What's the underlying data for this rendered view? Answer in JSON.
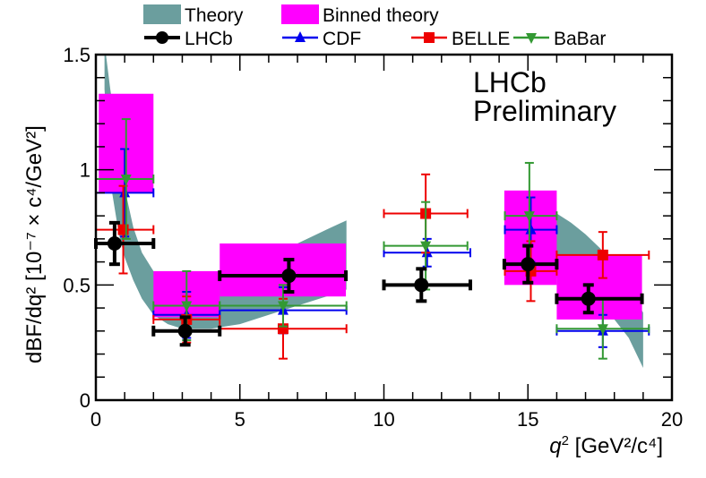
{
  "chart_data": {
    "type": "scatter",
    "xlabel_main": "q",
    "xlabel_sup": "2",
    "xlabel_units": "[GeV²/c⁴]",
    "ylabel": "dBF/dq² [10⁻⁷ × c⁴/GeV²]",
    "xlim": [
      0,
      20
    ],
    "ylim": [
      0,
      1.5
    ],
    "x_ticks": [
      0,
      5,
      10,
      15,
      20
    ],
    "x_tick_labels": [
      "0",
      "5",
      "10",
      "15",
      "20"
    ],
    "y_ticks": [
      0,
      0.5,
      1,
      1.5
    ],
    "y_tick_labels": [
      "0",
      "0.5",
      "1",
      "1.5"
    ],
    "annotation": [
      "LHCb",
      "Preliminary"
    ],
    "colors": {
      "theory": "#6b9e9e",
      "binned_theory": "#ff00ff",
      "lhcb": "#000000",
      "cdf": "#0000ee",
      "belle": "#ee0000",
      "babar": "#339933"
    },
    "legend": [
      {
        "key": "theory",
        "label": "Theory",
        "style": "band"
      },
      {
        "key": "binned_theory",
        "label": "Binned theory",
        "style": "box"
      },
      {
        "key": "lhcb",
        "label": "LHCb",
        "style": "circle"
      },
      {
        "key": "cdf",
        "label": "CDF",
        "style": "triangle-up"
      },
      {
        "key": "belle",
        "label": "BELLE",
        "style": "square"
      },
      {
        "key": "babar",
        "label": "BaBar",
        "style": "triangle-down"
      }
    ],
    "theory_band": {
      "x": [
        0.3,
        0.5,
        0.8,
        1.0,
        1.3,
        1.6,
        2.0,
        2.5,
        3.0,
        4.0,
        5.0,
        6.0,
        7.0,
        8.0,
        8.7
      ],
      "lower": [
        1.35,
        0.95,
        0.72,
        0.62,
        0.52,
        0.44,
        0.37,
        0.33,
        0.31,
        0.31,
        0.33,
        0.37,
        0.41,
        0.45,
        0.48
      ],
      "upper": [
        1.55,
        1.35,
        1.1,
        0.92,
        0.75,
        0.64,
        0.56,
        0.54,
        0.53,
        0.55,
        0.58,
        0.63,
        0.68,
        0.74,
        0.78
      ]
    },
    "theory_band_high": {
      "x": [
        14.2,
        15.0,
        15.5,
        16.0,
        16.5,
        17.0,
        17.5,
        18.0,
        18.5,
        19.0
      ],
      "lower": [
        0.62,
        0.6,
        0.57,
        0.53,
        0.49,
        0.45,
        0.41,
        0.35,
        0.27,
        0.14
      ],
      "upper": [
        0.88,
        0.86,
        0.84,
        0.81,
        0.77,
        0.72,
        0.66,
        0.58,
        0.49,
        0.38
      ]
    },
    "binned_theory": [
      {
        "x_low": 0.1,
        "x_high": 2.0,
        "y_low": 0.9,
        "y_high": 1.33
      },
      {
        "x_low": 2.0,
        "x_high": 4.3,
        "y_low": 0.36,
        "y_high": 0.56
      },
      {
        "x_low": 4.3,
        "x_high": 8.68,
        "y_low": 0.45,
        "y_high": 0.68
      },
      {
        "x_low": 14.18,
        "x_high": 16.0,
        "y_low": 0.5,
        "y_high": 0.91
      },
      {
        "x_low": 16.0,
        "x_high": 18.96,
        "y_low": 0.35,
        "y_high": 0.63
      }
    ],
    "series": [
      {
        "key": "lhcb",
        "name": "LHCb",
        "points": [
          {
            "x": 0.65,
            "y": 0.68,
            "xerr_low": 0.65,
            "xerr_high": 1.35,
            "yerr_low": 0.09,
            "yerr_high": 0.09
          },
          {
            "x": 3.1,
            "y": 0.3,
            "xerr_low": 1.1,
            "xerr_high": 1.2,
            "yerr_low": 0.06,
            "yerr_high": 0.06
          },
          {
            "x": 6.7,
            "y": 0.54,
            "xerr_low": 2.4,
            "xerr_high": 1.98,
            "yerr_low": 0.07,
            "yerr_high": 0.07
          },
          {
            "x": 11.3,
            "y": 0.5,
            "xerr_low": 1.3,
            "xerr_high": 1.7,
            "yerr_low": 0.07,
            "yerr_high": 0.07
          },
          {
            "x": 15.0,
            "y": 0.59,
            "xerr_low": 0.82,
            "xerr_high": 1.0,
            "yerr_low": 0.08,
            "yerr_high": 0.08
          },
          {
            "x": 17.1,
            "y": 0.44,
            "xerr_low": 1.1,
            "xerr_high": 1.86,
            "yerr_low": 0.06,
            "yerr_high": 0.06
          }
        ]
      },
      {
        "key": "cdf",
        "name": "CDF",
        "points": [
          {
            "x": 1.0,
            "y": 0.9,
            "xerr_low": 1.0,
            "xerr_high": 1.0,
            "yerr_low": 0.19,
            "yerr_high": 0.19
          },
          {
            "x": 3.15,
            "y": 0.37,
            "xerr_low": 1.15,
            "xerr_high": 1.15,
            "yerr_low": 0.1,
            "yerr_high": 0.1
          },
          {
            "x": 6.5,
            "y": 0.39,
            "xerr_low": 2.2,
            "xerr_high": 2.2,
            "yerr_low": 0.1,
            "yerr_high": 0.1
          },
          {
            "x": 11.5,
            "y": 0.64,
            "xerr_low": 1.5,
            "xerr_high": 1.5,
            "yerr_low": 0.06,
            "yerr_high": 0.06
          },
          {
            "x": 15.1,
            "y": 0.74,
            "xerr_low": 0.9,
            "xerr_high": 0.9,
            "yerr_low": 0.14,
            "yerr_high": 0.14
          },
          {
            "x": 17.6,
            "y": 0.3,
            "xerr_low": 1.6,
            "xerr_high": 1.6,
            "yerr_low": 0.07,
            "yerr_high": 0.07
          }
        ]
      },
      {
        "key": "belle",
        "name": "BELLE",
        "points": [
          {
            "x": 0.95,
            "y": 0.74,
            "xerr_low": 0.95,
            "xerr_high": 1.05,
            "yerr_low": 0.19,
            "yerr_high": 0.19
          },
          {
            "x": 3.15,
            "y": 0.35,
            "xerr_low": 1.15,
            "xerr_high": 1.15,
            "yerr_low": 0.1,
            "yerr_high": 0.1
          },
          {
            "x": 6.5,
            "y": 0.31,
            "xerr_low": 2.2,
            "xerr_high": 2.2,
            "yerr_low": 0.13,
            "yerr_high": 0.13
          },
          {
            "x": 11.45,
            "y": 0.81,
            "xerr_low": 1.45,
            "xerr_high": 1.45,
            "yerr_low": 0.17,
            "yerr_high": 0.17
          },
          {
            "x": 15.1,
            "y": 0.56,
            "xerr_low": 0.9,
            "xerr_high": 0.9,
            "yerr_low": 0.13,
            "yerr_high": 0.13
          },
          {
            "x": 17.6,
            "y": 0.63,
            "xerr_low": 1.6,
            "xerr_high": 1.6,
            "yerr_low": 0.1,
            "yerr_high": 0.1
          }
        ]
      },
      {
        "key": "babar",
        "name": "BaBar",
        "points": [
          {
            "x": 1.05,
            "y": 0.96,
            "xerr_low": 1.05,
            "xerr_high": 0.95,
            "yerr_low": 0.26,
            "yerr_high": 0.26
          },
          {
            "x": 3.15,
            "y": 0.41,
            "xerr_low": 1.15,
            "xerr_high": 1.15,
            "yerr_low": 0.15,
            "yerr_high": 0.15
          },
          {
            "x": 6.5,
            "y": 0.41,
            "xerr_low": 2.2,
            "xerr_high": 2.2,
            "yerr_low": 0.09,
            "yerr_high": 0.09
          },
          {
            "x": 11.45,
            "y": 0.67,
            "xerr_low": 1.45,
            "xerr_high": 1.45,
            "yerr_low": 0.19,
            "yerr_high": 0.19
          },
          {
            "x": 15.05,
            "y": 0.8,
            "xerr_low": 0.85,
            "xerr_high": 0.95,
            "yerr_low": 0.23,
            "yerr_high": 0.23
          },
          {
            "x": 17.6,
            "y": 0.31,
            "xerr_low": 1.6,
            "xerr_high": 1.6,
            "yerr_low": 0.13,
            "yerr_high": 0.13
          }
        ]
      }
    ]
  }
}
